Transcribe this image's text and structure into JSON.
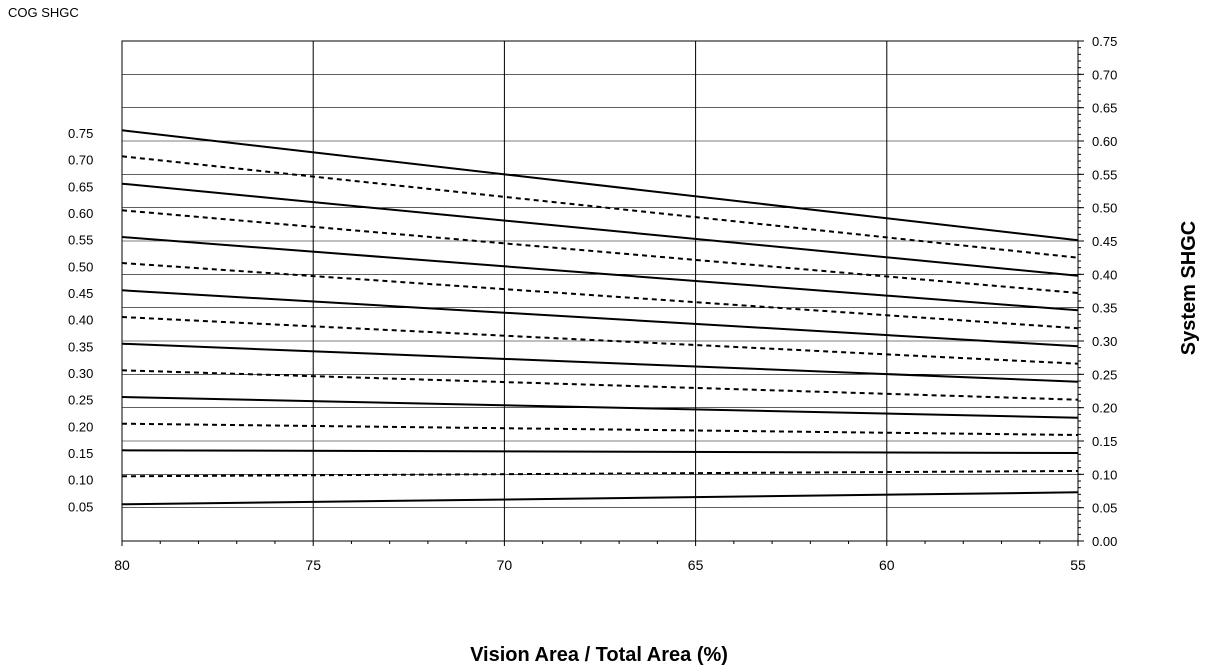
{
  "chart_data": {
    "type": "line",
    "left_axis_label": "COG SHGC",
    "right_axis_label": "System SHGC",
    "xlabel": "Vision Area / Total Area (%)",
    "x_reversed": true,
    "xlim": [
      55,
      80
    ],
    "x_ticks": [
      "80",
      "75",
      "70",
      "65",
      "60",
      "55"
    ],
    "x_tick_values": [
      80,
      75,
      70,
      65,
      60,
      55
    ],
    "x_minor_step": 1,
    "y_right_lim": [
      0,
      0.75
    ],
    "y_right_ticks": [
      "0.00",
      "0.05",
      "0.10",
      "0.15",
      "0.20",
      "0.25",
      "0.30",
      "0.35",
      "0.40",
      "0.45",
      "0.50",
      "0.55",
      "0.60",
      "0.65",
      "0.70",
      "0.75"
    ],
    "y_right_minor_step": 0.01,
    "y_left_ticks": [
      {
        "label": "0.75",
        "value": 0.612
      },
      {
        "label": "0.70",
        "value": 0.572
      },
      {
        "label": "0.65",
        "value": 0.532
      },
      {
        "label": "0.60",
        "value": 0.492
      },
      {
        "label": "0.55",
        "value": 0.452
      },
      {
        "label": "0.50",
        "value": 0.412
      },
      {
        "label": "0.45",
        "value": 0.372
      },
      {
        "label": "0.40",
        "value": 0.332
      },
      {
        "label": "0.35",
        "value": 0.292
      },
      {
        "label": "0.30",
        "value": 0.252
      },
      {
        "label": "0.25",
        "value": 0.212
      },
      {
        "label": "0.20",
        "value": 0.172
      },
      {
        "label": "0.15",
        "value": 0.132
      },
      {
        "label": "0.10",
        "value": 0.092
      },
      {
        "label": "0.05",
        "value": 0.052
      }
    ],
    "grid": true,
    "series": [
      {
        "cog": 0.75,
        "style": "solid",
        "x": [
          80,
          55
        ],
        "y": [
          0.616,
          0.451
        ]
      },
      {
        "cog": 0.7,
        "style": "dashed",
        "x": [
          80,
          55
        ],
        "y": [
          0.577,
          0.425
        ]
      },
      {
        "cog": 0.65,
        "style": "solid",
        "x": [
          80,
          55
        ],
        "y": [
          0.536,
          0.398
        ]
      },
      {
        "cog": 0.6,
        "style": "dashed",
        "x": [
          80,
          55
        ],
        "y": [
          0.496,
          0.372
        ]
      },
      {
        "cog": 0.55,
        "style": "solid",
        "x": [
          80,
          55
        ],
        "y": [
          0.456,
          0.346
        ]
      },
      {
        "cog": 0.5,
        "style": "dashed",
        "x": [
          80,
          55
        ],
        "y": [
          0.417,
          0.319
        ]
      },
      {
        "cog": 0.45,
        "style": "solid",
        "x": [
          80,
          55
        ],
        "y": [
          0.376,
          0.292
        ]
      },
      {
        "cog": 0.4,
        "style": "dashed",
        "x": [
          80,
          55
        ],
        "y": [
          0.336,
          0.266
        ]
      },
      {
        "cog": 0.35,
        "style": "solid",
        "x": [
          80,
          55
        ],
        "y": [
          0.296,
          0.239
        ]
      },
      {
        "cog": 0.3,
        "style": "dashed",
        "x": [
          80,
          55
        ],
        "y": [
          0.256,
          0.212
        ]
      },
      {
        "cog": 0.25,
        "style": "solid",
        "x": [
          80,
          55
        ],
        "y": [
          0.216,
          0.185
        ]
      },
      {
        "cog": 0.2,
        "style": "dashed",
        "x": [
          80,
          55
        ],
        "y": [
          0.176,
          0.159
        ]
      },
      {
        "cog": 0.15,
        "style": "solid",
        "x": [
          80,
          55
        ],
        "y": [
          0.136,
          0.132
        ]
      },
      {
        "cog": 0.1,
        "style": "dashed",
        "x": [
          80,
          55
        ],
        "y": [
          0.097,
          0.105
        ]
      },
      {
        "cog": 0.05,
        "style": "solid",
        "x": [
          80,
          55
        ],
        "y": [
          0.055,
          0.073
        ]
      }
    ]
  }
}
